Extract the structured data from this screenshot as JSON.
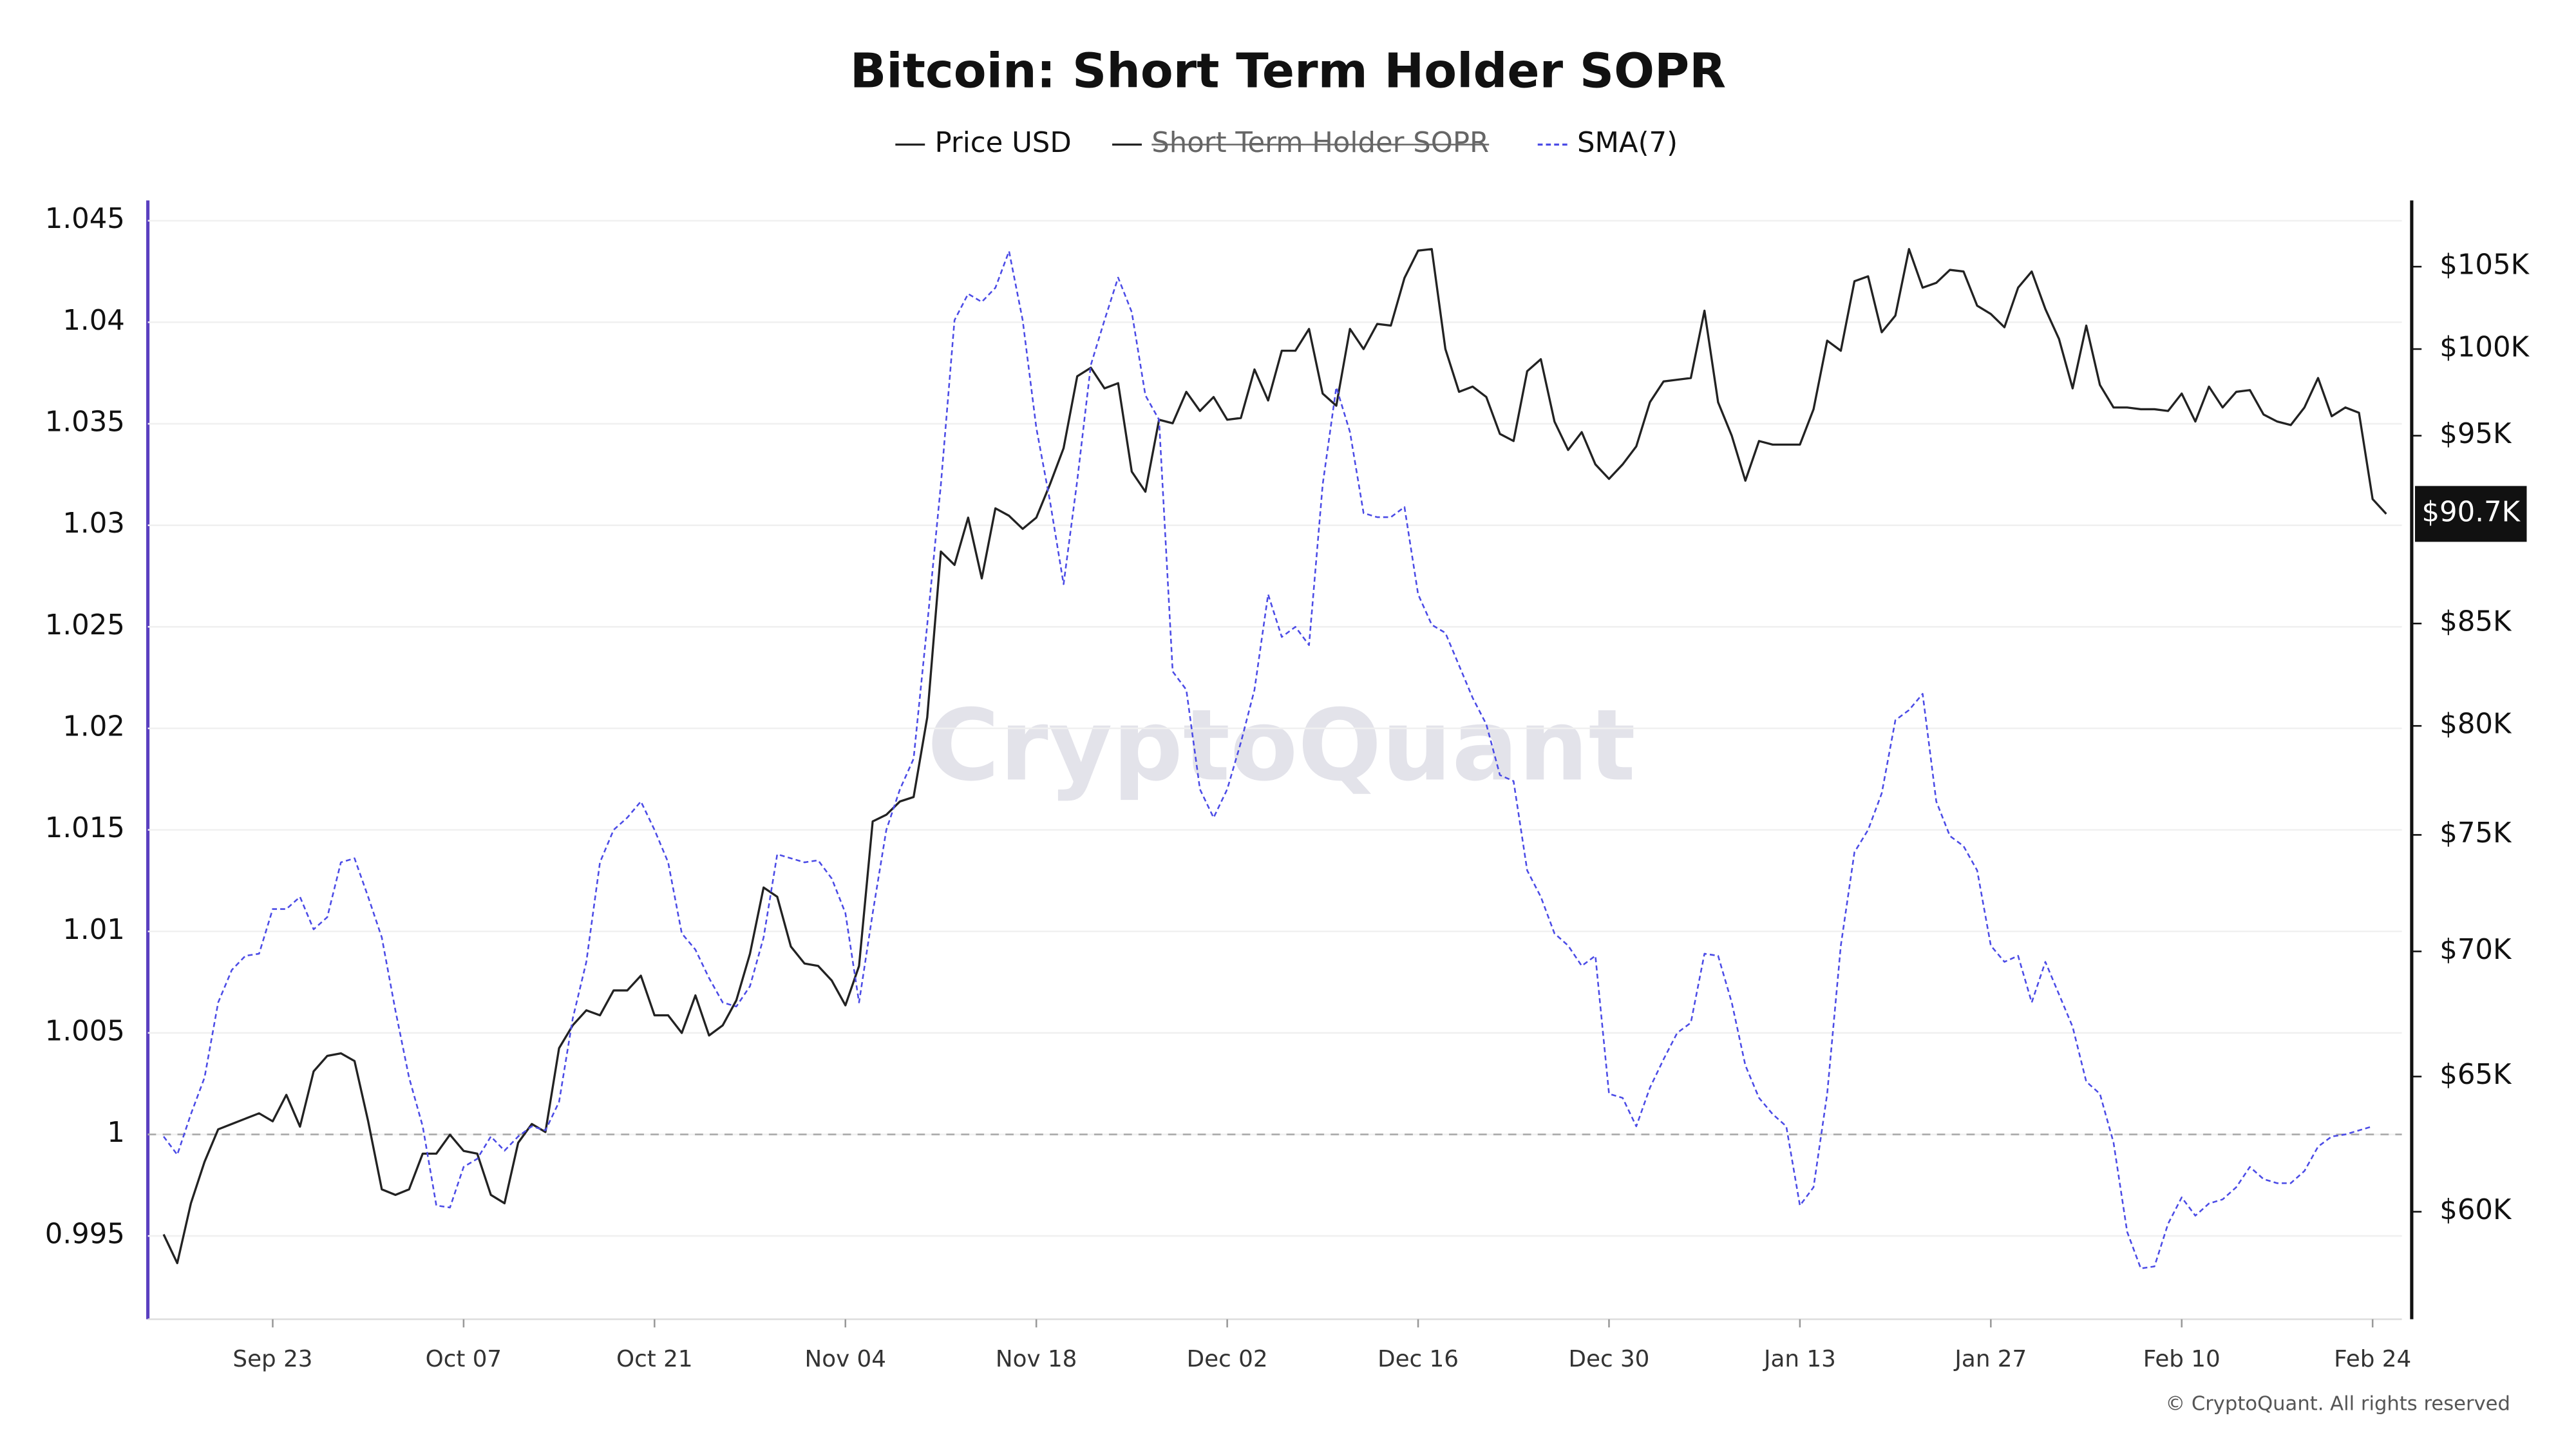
{
  "chart_data": {
    "type": "line",
    "title": "Bitcoin: Short Term Holder SOPR",
    "watermark": "CryptoQuant",
    "footer": "© CryptoQuant. All rights reserved",
    "price_label": "$90.7K",
    "categories": [
      null,
      null,
      null,
      null,
      null,
      null,
      null,
      null,
      "Sep 23",
      null,
      null,
      null,
      null,
      null,
      null,
      null,
      null,
      null,
      null,
      null,
      null,
      null,
      "Oct 07",
      null,
      null,
      null,
      null,
      null,
      null,
      null,
      null,
      null,
      null,
      null,
      null,
      null,
      "Oct 21",
      null,
      null,
      null,
      null,
      null,
      null,
      null,
      null,
      null,
      null,
      null,
      null,
      null,
      "Nov 04",
      null,
      null,
      null,
      null,
      null,
      null,
      null,
      null,
      null,
      null,
      null,
      null,
      null,
      "Nov 18",
      null,
      null,
      null,
      null,
      null,
      null,
      null,
      null,
      null,
      null,
      null,
      null,
      null,
      "Dec 02",
      null,
      null,
      null,
      null,
      null,
      null,
      null,
      null,
      null,
      null,
      null,
      null,
      null,
      "Dec 16",
      null,
      null,
      null,
      null,
      null,
      null,
      null,
      null,
      null,
      null,
      null,
      null,
      null,
      "Dec 30",
      null,
      null,
      null,
      null,
      null,
      null,
      null,
      null,
      null,
      null,
      null,
      null,
      null,
      "Jan 13",
      null,
      null,
      null,
      null,
      null,
      null,
      null,
      null,
      null,
      null,
      null,
      null,
      null,
      "Jan 27",
      null,
      null,
      null,
      null,
      null,
      null,
      null,
      null,
      null,
      null,
      null,
      null,
      null,
      "Feb 10",
      null,
      null,
      null,
      null,
      null,
      null,
      null,
      null,
      null,
      null,
      null,
      null,
      null,
      "Feb 24",
      null
    ],
    "series": [
      {
        "name": "Price USD",
        "color": "#222222",
        "axis": "y2",
        "values": [
          59200,
          58200,
          60300,
          61800,
          63000,
          63200,
          63400,
          63600,
          63300,
          64300,
          63100,
          65200,
          65800,
          65900,
          65600,
          63300,
          60800,
          60600,
          60800,
          62100,
          62100,
          62800,
          62200,
          62100,
          60600,
          60300,
          62500,
          63200,
          62900,
          66100,
          67000,
          67600,
          67400,
          68400,
          68400,
          69000,
          67400,
          67400,
          66700,
          68200,
          66600,
          67000,
          68000,
          69900,
          72700,
          72300,
          70200,
          69500,
          69400,
          68800,
          67800,
          69400,
          75600,
          75900,
          76500,
          76700,
          80400,
          88700,
          88000,
          90500,
          87300,
          91000,
          90600,
          89900,
          90500,
          92300,
          94300,
          98400,
          98900,
          97700,
          98000,
          93000,
          91900,
          95900,
          95700,
          97500,
          96400,
          97200,
          95900,
          96000,
          98800,
          97000,
          99900,
          99900,
          101200,
          97400,
          96700,
          101200,
          100000,
          101500,
          101400,
          104300,
          106000,
          106100,
          100000,
          97500,
          97800,
          97200,
          95100,
          94700,
          98700,
          99400,
          95800,
          94200,
          95200,
          93400,
          92600,
          93400,
          94400,
          96900,
          98100,
          98200,
          98300,
          102300,
          96900,
          95000,
          92500,
          94700,
          94500,
          94500,
          94500,
          96500,
          100500,
          99900,
          104100,
          104400,
          101000,
          102000,
          106100,
          103700,
          104000,
          104800,
          104700,
          102600,
          102100,
          101300,
          103700,
          104700,
          102400,
          100600,
          97700,
          101400,
          97900,
          96600,
          96600,
          96500,
          96500,
          96400,
          97400,
          95800,
          97800,
          96600,
          97500,
          97600,
          96200,
          95800,
          95600,
          96600,
          98300,
          96100,
          96600,
          96300,
          91500,
          90700
        ]
      },
      {
        "name": "Short Term Holder SOPR",
        "color": "#222222",
        "hidden": true
      },
      {
        "name": "SMA(7)",
        "color": "#4b4be6",
        "dashed": true,
        "values": [
          0.9999,
          0.999,
          1.001,
          1.0028,
          1.0065,
          1.0081,
          1.0088,
          1.0089,
          1.0111,
          1.0111,
          1.0117,
          1.0101,
          1.0107,
          1.0134,
          1.0136,
          1.0117,
          1.0097,
          1.0061,
          1.0028,
          1.0004,
          0.9965,
          0.9964,
          0.9984,
          0.9988,
          0.9999,
          0.9992,
          0.9999,
          1.0004,
          1.0002,
          1.0016,
          1.0057,
          1.0085,
          1.0134,
          1.015,
          1.0156,
          1.0164,
          1.015,
          1.0134,
          1.0099,
          1.0091,
          1.0077,
          1.0065,
          1.0063,
          1.0073,
          1.0097,
          1.0138,
          1.0136,
          1.0134,
          1.0135,
          1.0126,
          1.0109,
          1.0065,
          1.0109,
          1.015,
          1.017,
          1.0185,
          1.0251,
          1.032,
          1.0401,
          1.0414,
          1.041,
          1.0417,
          1.0435,
          1.0401,
          1.0348,
          1.0312,
          1.0271,
          1.0322,
          1.0379,
          1.0401,
          1.0422,
          1.0405,
          1.0364,
          1.0352,
          1.0228,
          1.0219,
          1.017,
          1.0156,
          1.017,
          1.0193,
          1.0219,
          1.0266,
          1.0245,
          1.025,
          1.0241,
          1.032,
          1.0368,
          1.0346,
          1.0306,
          1.0304,
          1.0304,
          1.0309,
          1.0266,
          1.0251,
          1.0247,
          1.0231,
          1.0215,
          1.0202,
          1.0177,
          1.0174,
          1.013,
          1.0117,
          1.0099,
          1.0093,
          1.0083,
          1.0088,
          1.002,
          1.0018,
          1.0004,
          1.0023,
          1.0037,
          1.005,
          1.0055,
          1.0089,
          1.0088,
          1.0065,
          1.0034,
          1.0018,
          1.001,
          1.0004,
          0.9965,
          0.9974,
          1.002,
          1.0093,
          1.0139,
          1.015,
          1.0168,
          1.0204,
          1.0209,
          1.0217,
          1.0164,
          1.0147,
          1.0142,
          1.013,
          1.0093,
          1.0085,
          1.0088,
          1.0065,
          1.0085,
          1.0069,
          1.0053,
          1.0026,
          1.002,
          0.9996,
          0.9952,
          0.9934,
          0.9935,
          0.9956,
          0.9969,
          0.996,
          0.9966,
          0.9968,
          0.9974,
          0.9984,
          0.9978,
          0.9976,
          0.9976,
          0.9982,
          0.9994,
          0.9999,
          1.0,
          1.0002,
          1.0004,
          null
        ]
      }
    ],
    "ylim": [
      0.9909,
      1.046
    ],
    "yticks": [
      0.995,
      1,
      1.005,
      1.01,
      1.015,
      1.02,
      1.025,
      1.03,
      1.035,
      1.04,
      1.045
    ],
    "y2lim": [
      56300,
      109200
    ],
    "y2_log": true,
    "y2ticks": [
      {
        "value": 60000,
        "label": "$60K"
      },
      {
        "value": 65000,
        "label": "$65K"
      },
      {
        "value": 70000,
        "label": "$70K"
      },
      {
        "value": 75000,
        "label": "$75K"
      },
      {
        "value": 80000,
        "label": "$80K"
      },
      {
        "value": 85000,
        "label": "$85K"
      },
      {
        "value": 95000,
        "label": "$95K"
      },
      {
        "value": 100000,
        "label": "$100K"
      },
      {
        "value": 105000,
        "label": "$105K"
      }
    ],
    "reference_line": 1,
    "grid": true
  }
}
